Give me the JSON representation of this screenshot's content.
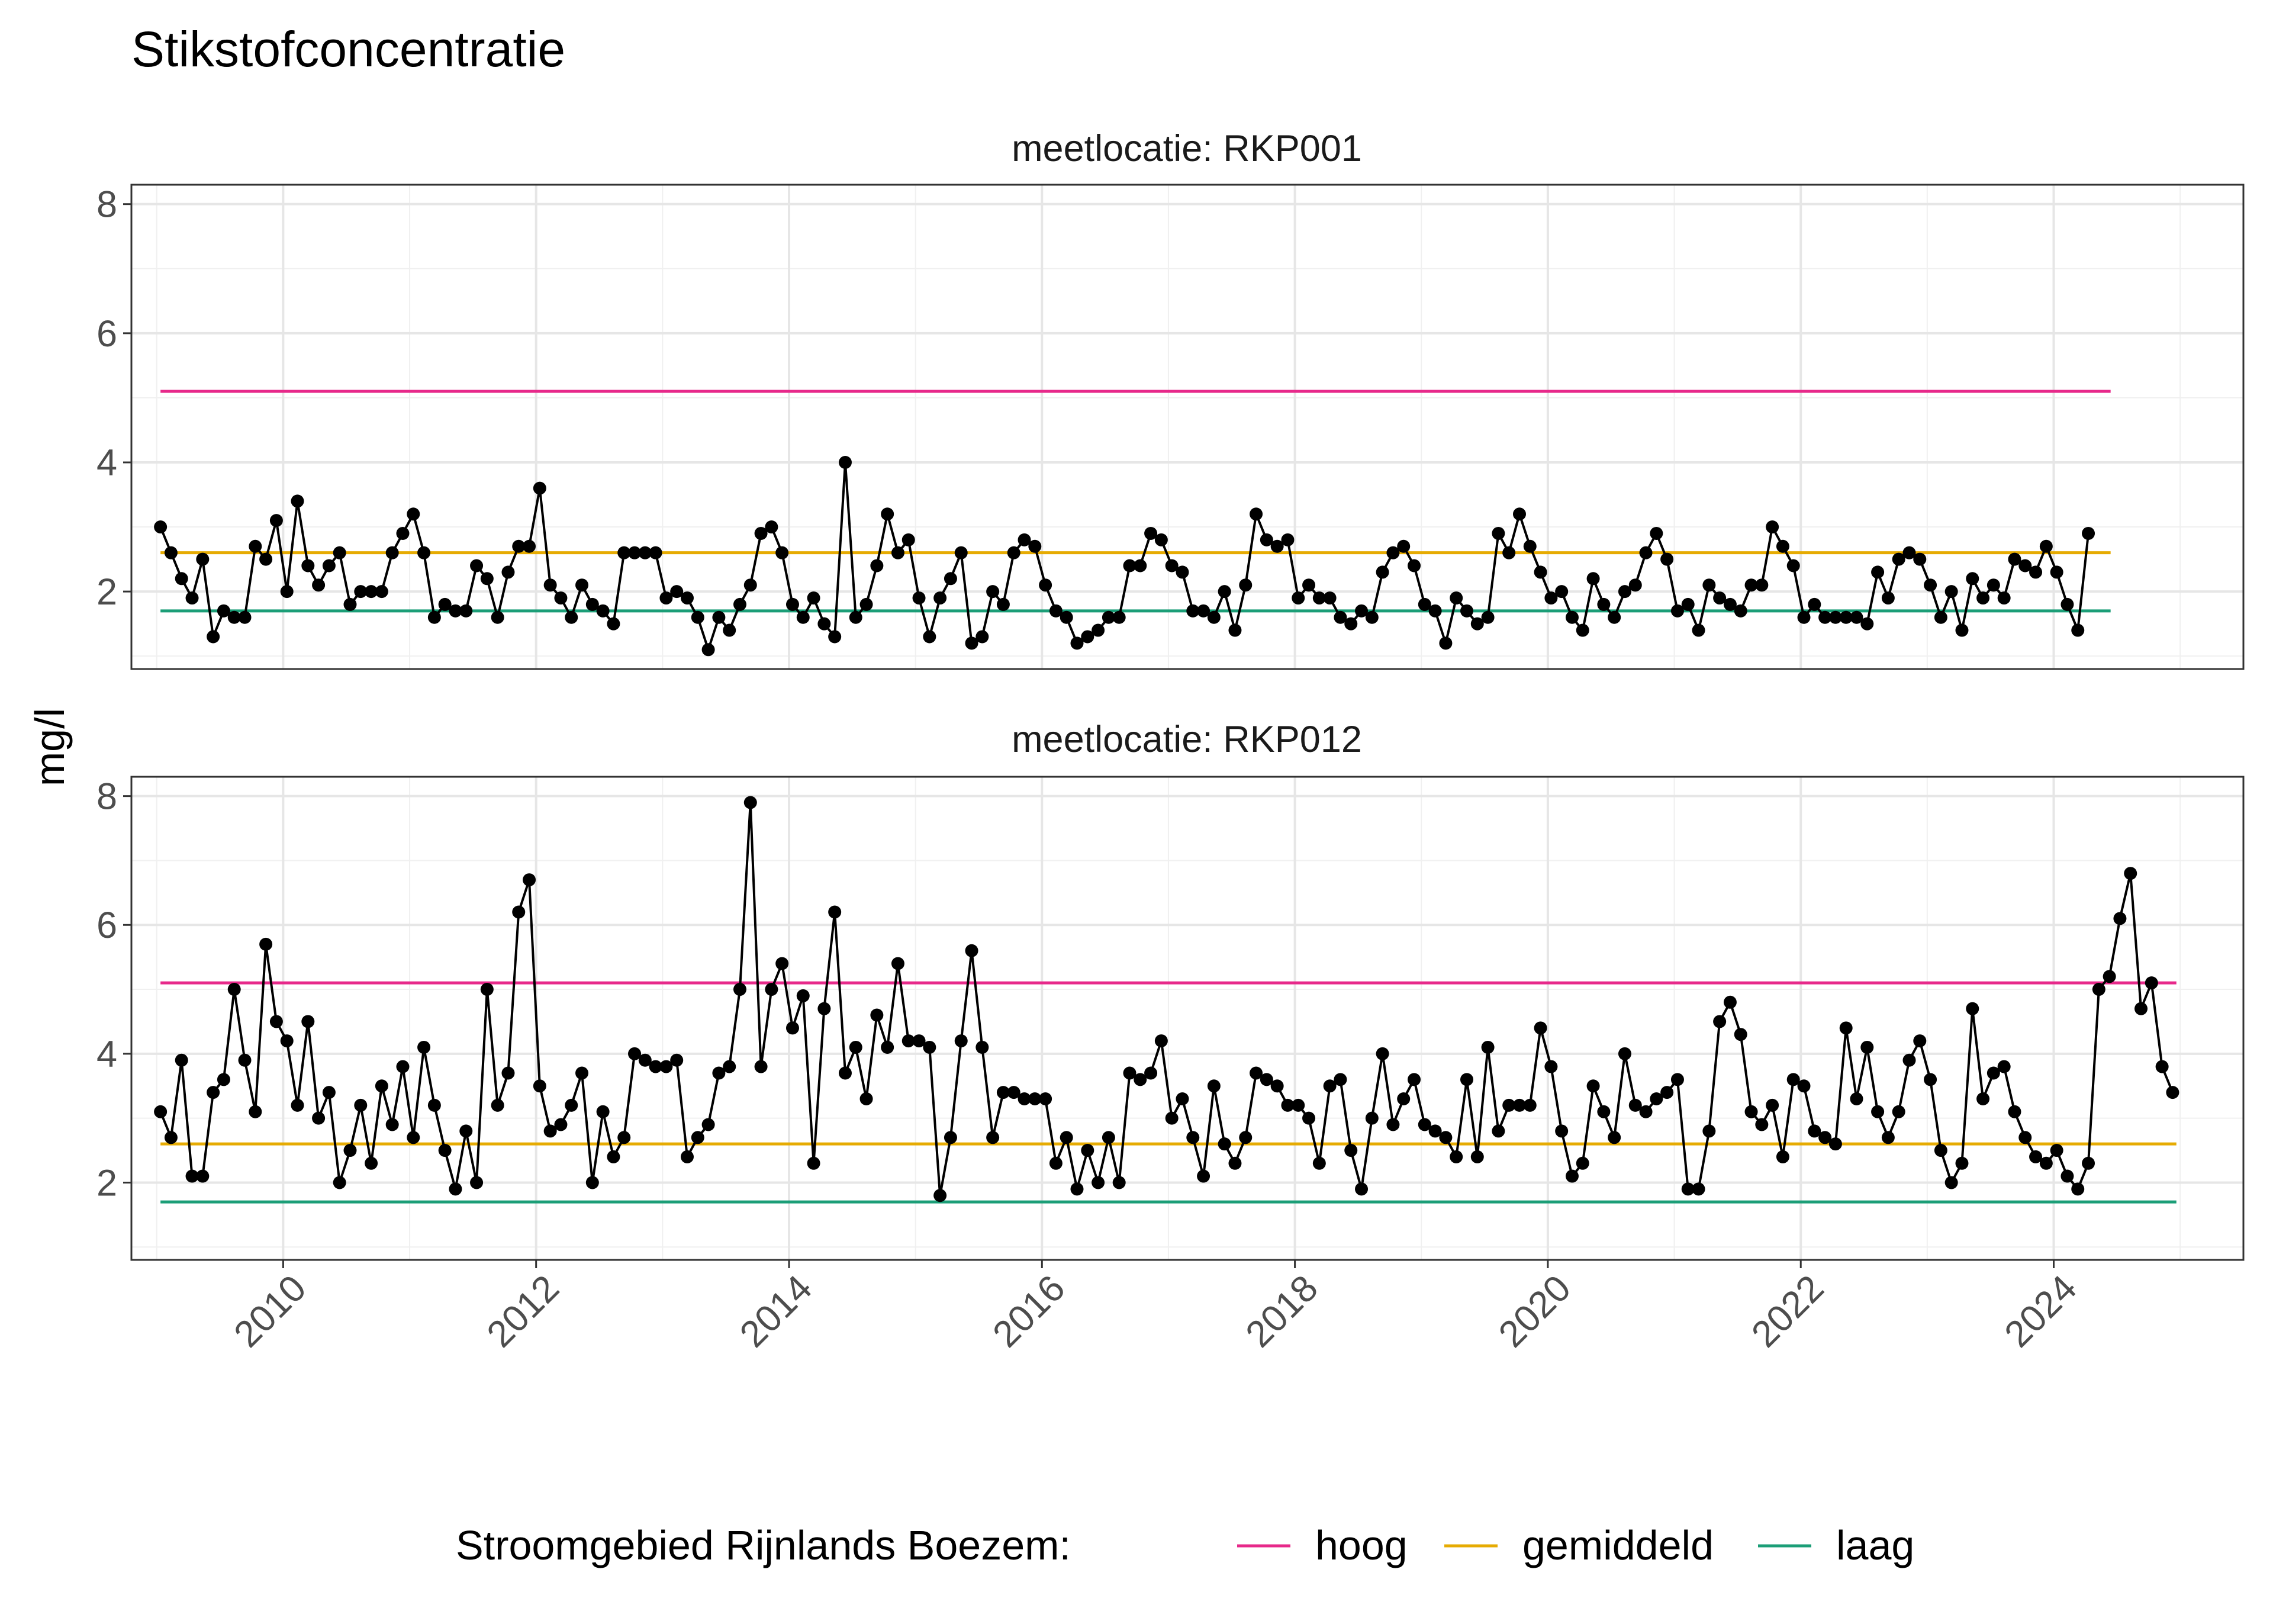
{
  "title": "Stikstofconcentratie",
  "ylabel": "mg/l",
  "legend": {
    "title": "Stroomgebied Rijnlands Boezem:",
    "items": [
      {
        "label": "hoog",
        "color": "#E7298A"
      },
      {
        "label": "gemiddeld",
        "color": "#E6AB02"
      },
      {
        "label": "laag",
        "color": "#1B9E77"
      }
    ]
  },
  "chart_data": [
    {
      "type": "line",
      "title": "meetlocatie: RKP001",
      "xlim": [
        2008.8,
        2025.5
      ],
      "ylim": [
        0.8,
        8.3
      ],
      "yticks": [
        2,
        4,
        6,
        8
      ],
      "xticks": [
        2010,
        2012,
        2014,
        2016,
        2018,
        2020,
        2022,
        2024
      ],
      "grid": true,
      "reference_lines": [
        {
          "name": "hoog",
          "value": 5.1,
          "x": [
            2009.03,
            2024.45
          ],
          "color": "#E7298A"
        },
        {
          "name": "gemiddeld",
          "value": 2.6,
          "x": [
            2009.03,
            2024.45
          ],
          "color": "#E6AB02"
        },
        {
          "name": "laag",
          "value": 1.7,
          "x": [
            2009.03,
            2024.45
          ],
          "color": "#1B9E77"
        }
      ],
      "series": [
        {
          "x_start": 2009.03,
          "x_step": 0.0833,
          "values": [
            3.0,
            2.6,
            2.2,
            1.9,
            2.5,
            1.3,
            1.7,
            1.6,
            1.6,
            2.7,
            2.5,
            3.1,
            2.0,
            3.4,
            2.4,
            2.1,
            2.4,
            2.6,
            1.8,
            2.0,
            2.0,
            2.0,
            2.6,
            2.9,
            3.2,
            2.6,
            1.6,
            1.8,
            1.7,
            1.7,
            2.4,
            2.2,
            1.6,
            2.3,
            2.7,
            2.7,
            3.6,
            2.1,
            1.9,
            1.6,
            2.1,
            1.8,
            1.7,
            1.5,
            2.6,
            2.6,
            2.6,
            2.6,
            1.9,
            2.0,
            1.9,
            1.6,
            1.1,
            1.6,
            1.4,
            1.8,
            2.1,
            2.9,
            3.0,
            2.6,
            1.8,
            1.6,
            1.9,
            1.5,
            1.3,
            4.0,
            1.6,
            1.8,
            2.4,
            3.2,
            2.6,
            2.8,
            1.9,
            1.3,
            1.9,
            2.2,
            2.6,
            1.2,
            1.3,
            2.0,
            1.8,
            2.6,
            2.8,
            2.7,
            2.1,
            1.7,
            1.6,
            1.2,
            1.3,
            1.4,
            1.6,
            1.6,
            2.4,
            2.4,
            2.9,
            2.8,
            2.4,
            2.3,
            1.7,
            1.7,
            1.6,
            2.0,
            1.4,
            2.1,
            3.2,
            2.8,
            2.7,
            2.8,
            1.9,
            2.1,
            1.9,
            1.9,
            1.6,
            1.5,
            1.7,
            1.6,
            2.3,
            2.6,
            2.7,
            2.4,
            1.8,
            1.7,
            1.2,
            1.9,
            1.7,
            1.5,
            1.6,
            2.9,
            2.6,
            3.2,
            2.7,
            2.3,
            1.9,
            2.0,
            1.6,
            1.4,
            2.2,
            1.8,
            1.6,
            2.0,
            2.1,
            2.6,
            2.9,
            2.5,
            1.7,
            1.8,
            1.4,
            2.1,
            1.9,
            1.8,
            1.7,
            2.1,
            2.1,
            3.0,
            2.7,
            2.4,
            1.6,
            1.8,
            1.6,
            1.6,
            1.6,
            1.6,
            1.5,
            2.3,
            1.9,
            2.5,
            2.6,
            2.5,
            2.1,
            1.6,
            2.0,
            1.4,
            2.2,
            1.9,
            2.1,
            1.9,
            2.5,
            2.4,
            2.3,
            2.7,
            2.3,
            1.8,
            1.4,
            2.9
          ]
        }
      ]
    },
    {
      "type": "line",
      "title": "meetlocatie: RKP012",
      "xlim": [
        2008.8,
        2025.5
      ],
      "ylim": [
        0.8,
        8.3
      ],
      "yticks": [
        2,
        4,
        6,
        8
      ],
      "xticks": [
        2010,
        2012,
        2014,
        2016,
        2018,
        2020,
        2022,
        2024
      ],
      "grid": true,
      "reference_lines": [
        {
          "name": "hoog",
          "value": 5.1,
          "x": [
            2009.03,
            2024.97
          ],
          "color": "#E7298A"
        },
        {
          "name": "gemiddeld",
          "value": 2.6,
          "x": [
            2009.03,
            2024.97
          ],
          "color": "#E6AB02"
        },
        {
          "name": "laag",
          "value": 1.7,
          "x": [
            2009.03,
            2024.97
          ],
          "color": "#1B9E77"
        }
      ],
      "series": [
        {
          "x_start": 2009.03,
          "x_step": 0.0833,
          "values": [
            3.1,
            2.7,
            3.9,
            2.1,
            2.1,
            3.4,
            3.6,
            5.0,
            3.9,
            3.1,
            5.7,
            4.5,
            4.2,
            3.2,
            4.5,
            3.0,
            3.4,
            2.0,
            2.5,
            3.2,
            2.3,
            3.5,
            2.9,
            3.8,
            2.7,
            4.1,
            3.2,
            2.5,
            1.9,
            2.8,
            2.0,
            5.0,
            3.2,
            3.7,
            6.2,
            6.7,
            3.5,
            2.8,
            2.9,
            3.2,
            3.7,
            2.0,
            3.1,
            2.4,
            2.7,
            4.0,
            3.9,
            3.8,
            3.8,
            3.9,
            2.4,
            2.7,
            2.9,
            3.7,
            3.8,
            5.0,
            7.9,
            3.8,
            5.0,
            5.4,
            4.4,
            4.9,
            2.3,
            4.7,
            6.2,
            3.7,
            4.1,
            3.3,
            4.6,
            4.1,
            5.4,
            4.2,
            4.2,
            4.1,
            1.8,
            2.7,
            4.2,
            5.6,
            4.1,
            2.7,
            3.4,
            3.4,
            3.3,
            3.3,
            3.3,
            2.3,
            2.7,
            1.9,
            2.5,
            2.0,
            2.7,
            2.0,
            3.7,
            3.6,
            3.7,
            4.2,
            3.0,
            3.3,
            2.7,
            2.1,
            3.5,
            2.6,
            2.3,
            2.7,
            3.7,
            3.6,
            3.5,
            3.2,
            3.2,
            3.0,
            2.3,
            3.5,
            3.6,
            2.5,
            1.9,
            3.0,
            4.0,
            2.9,
            3.3,
            3.6,
            2.9,
            2.8,
            2.7,
            2.4,
            3.6,
            2.4,
            4.1,
            2.8,
            3.2,
            3.2,
            3.2,
            4.4,
            3.8,
            2.8,
            2.1,
            2.3,
            3.5,
            3.1,
            2.7,
            4.0,
            3.2,
            3.1,
            3.3,
            3.4,
            3.6,
            1.9,
            1.9,
            2.8,
            4.5,
            4.8,
            4.3,
            3.1,
            2.9,
            3.2,
            2.4,
            3.6,
            3.5,
            2.8,
            2.7,
            2.6,
            4.4,
            3.3,
            4.1,
            3.1,
            2.7,
            3.1,
            3.9,
            4.2,
            3.6,
            2.5,
            2.0,
            2.3,
            4.7,
            3.3,
            3.7,
            3.8,
            3.1,
            2.7,
            2.4,
            2.3,
            2.5,
            2.1,
            1.9,
            2.3,
            5.0,
            5.2,
            6.1,
            6.8,
            4.7,
            5.1,
            3.8,
            3.4
          ]
        }
      ]
    }
  ]
}
